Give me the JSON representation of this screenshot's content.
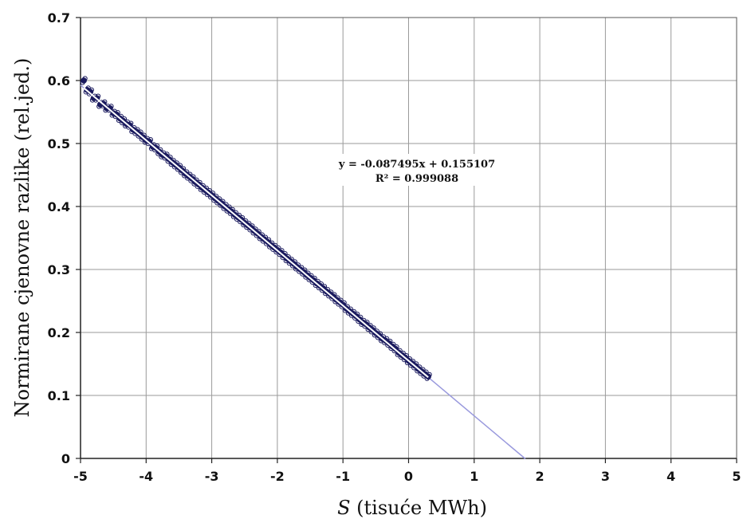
{
  "chart_data": {
    "type": "scatter",
    "title": "",
    "xlabel_italic": "S",
    "xlabel_rest": " (tisuće MWh)",
    "ylabel": "Normirane cjenovne razlike (rel.jed.)",
    "xlim": [
      -5,
      5
    ],
    "ylim": [
      0,
      0.7
    ],
    "x_ticks": [
      -5,
      -4,
      -3,
      -2,
      -1,
      0,
      1,
      2,
      3,
      4,
      5
    ],
    "x_tick_labels": [
      "-5",
      "-4",
      "-3",
      "-2",
      "-1",
      "0",
      "1",
      "2",
      "3",
      "4",
      "5"
    ],
    "y_ticks": [
      0,
      0.1,
      0.2,
      0.3,
      0.4,
      0.5,
      0.6,
      0.7
    ],
    "y_tick_labels": [
      "0",
      "0.1",
      "0.2",
      "0.3",
      "0.4",
      "0.5",
      "0.6",
      "0.7"
    ],
    "grid": true,
    "trendline": {
      "slope": -0.087495,
      "intercept": 0.155107,
      "equation": "y = -0.087495x + 0.155107",
      "r2": "R² = 0.999088",
      "x_range": [
        -5,
        1.78
      ],
      "color": "#9999dd"
    },
    "fit_line_color": "#ffffff",
    "marker_color": "#1a1a5e",
    "series": [
      {
        "x": [
          -4.95,
          -4.9,
          -4.85,
          -4.8,
          -4.75,
          -4.7,
          -4.65,
          -4.6,
          -4.55,
          -4.5,
          -4.45,
          -4.4,
          -4.35,
          -4.3,
          -4.25,
          -4.2,
          -4.15,
          -4.1,
          -4.05,
          -4.0,
          -3.95,
          -3.9,
          -3.85,
          -3.8,
          -3.75,
          -3.7,
          -3.65,
          -3.6,
          -3.55,
          -3.5,
          -3.45,
          -3.4,
          -3.35,
          -3.3,
          -3.25,
          -3.2,
          -3.15,
          -3.1,
          -3.05,
          -3.0,
          -2.95,
          -2.9,
          -2.85,
          -2.8,
          -2.75,
          -2.7,
          -2.65,
          -2.6,
          -2.55,
          -2.5,
          -2.45,
          -2.4,
          -2.35,
          -2.3,
          -2.25,
          -2.2,
          -2.15,
          -2.1,
          -2.05,
          -2.0,
          -1.95,
          -1.9,
          -1.85,
          -1.8,
          -1.75,
          -1.7,
          -1.65,
          -1.6,
          -1.55,
          -1.5,
          -1.45,
          -1.4,
          -1.35,
          -1.3,
          -1.25,
          -1.2,
          -1.15,
          -1.1,
          -1.05,
          -1.0,
          -0.95,
          -0.9,
          -0.85,
          -0.8,
          -0.75,
          -0.7,
          -0.65,
          -0.6,
          -0.55,
          -0.5,
          -0.45,
          -0.4,
          -0.35,
          -0.3,
          -0.25,
          -0.2,
          -0.15,
          -0.1,
          -0.05,
          0.0,
          0.05,
          0.1,
          0.15,
          0.2,
          0.25,
          0.3
        ],
        "y": [
          0.6,
          0.585,
          0.582,
          0.572,
          0.572,
          0.562,
          0.563,
          0.556,
          0.556,
          0.548,
          0.546,
          0.54,
          0.536,
          0.531,
          0.529,
          0.522,
          0.519,
          0.515,
          0.51,
          0.505,
          0.503,
          0.495,
          0.493,
          0.487,
          0.482,
          0.48,
          0.475,
          0.47,
          0.466,
          0.462,
          0.457,
          0.452,
          0.448,
          0.444,
          0.439,
          0.435,
          0.43,
          0.426,
          0.422,
          0.418,
          0.413,
          0.409,
          0.405,
          0.4,
          0.396,
          0.392,
          0.387,
          0.383,
          0.379,
          0.374,
          0.37,
          0.366,
          0.361,
          0.357,
          0.352,
          0.348,
          0.344,
          0.339,
          0.335,
          0.331,
          0.327,
          0.322,
          0.317,
          0.313,
          0.309,
          0.304,
          0.3,
          0.296,
          0.291,
          0.287,
          0.283,
          0.278,
          0.274,
          0.27,
          0.265,
          0.261,
          0.257,
          0.252,
          0.248,
          0.244,
          0.238,
          0.234,
          0.23,
          0.226,
          0.221,
          0.216,
          0.213,
          0.208,
          0.204,
          0.199,
          0.195,
          0.19,
          0.187,
          0.183,
          0.178,
          0.174,
          0.168,
          0.164,
          0.16,
          0.155,
          0.151,
          0.147,
          0.142,
          0.138,
          0.134,
          0.13
        ]
      }
    ]
  }
}
